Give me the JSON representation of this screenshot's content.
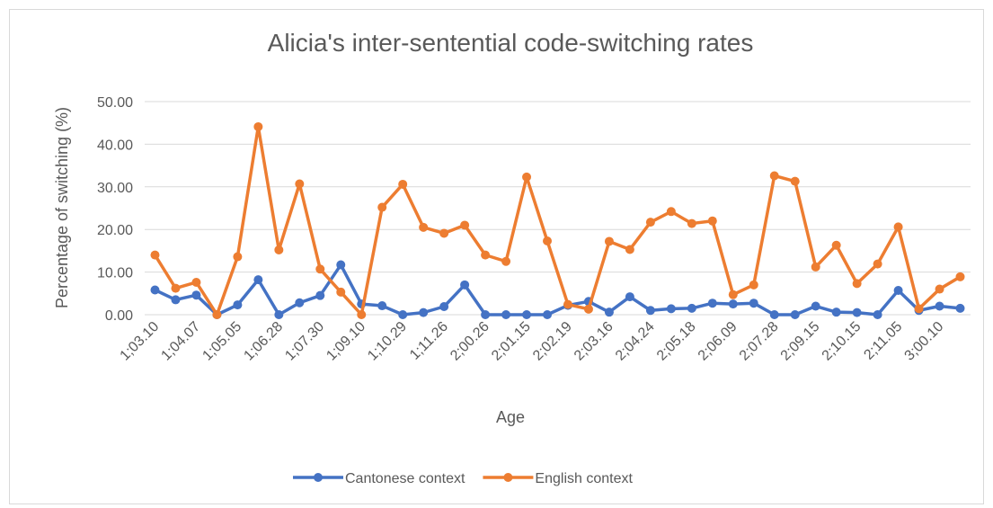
{
  "chart_data": {
    "type": "line",
    "title": "Alicia's inter-sentential code-switching  rates",
    "x_label": "Age",
    "y_label": "Percentage of switching (%)",
    "categories": [
      "1;03.10",
      null,
      "1;04.07",
      null,
      "1;05.05",
      null,
      "1;06.28",
      null,
      "1;07.30",
      null,
      "1;09.10",
      null,
      "1;10.29",
      null,
      "1;11.26",
      null,
      "2;00.26",
      null,
      "2;01.15",
      null,
      "2;02.19",
      null,
      "2;03.16",
      null,
      "2;04.24",
      null,
      "2;05.18",
      null,
      "2;06.09",
      null,
      "2;07.28",
      null,
      "2;09.15",
      null,
      "2;10.15",
      null,
      "2;11.05",
      null,
      "3;00.10",
      null
    ],
    "series": [
      {
        "name": "Cantonese context",
        "color": "#4472c4",
        "values": [
          5.8,
          3.5,
          4.6,
          0,
          2.3,
          8.2,
          0,
          2.8,
          4.5,
          11.7,
          2.5,
          2.1,
          0,
          0.5,
          1.9,
          7.0,
          0,
          0,
          0,
          0,
          2.2,
          3.1,
          0.6,
          4.2,
          1.0,
          1.4,
          1.5,
          2.7,
          2.5,
          2.7,
          0,
          0,
          2.0,
          0.6,
          0.5,
          0,
          5.7,
          1.0,
          2.0,
          1.5
        ]
      },
      {
        "name": "English context",
        "color": "#ed7d31",
        "values": [
          14.0,
          6.2,
          7.6,
          0,
          13.6,
          44.1,
          15.2,
          30.7,
          10.7,
          5.3,
          0,
          25.2,
          30.6,
          20.5,
          19.1,
          21.0,
          14.0,
          12.5,
          32.3,
          17.3,
          2.4,
          1.3,
          17.2,
          15.3,
          21.7,
          24.2,
          21.4,
          22.0,
          4.7,
          7.0,
          32.6,
          31.3,
          11.2,
          16.3,
          7.3,
          11.9,
          20.6,
          1.4,
          6.0,
          8.9
        ]
      }
    ],
    "ylim": [
      0,
      50
    ],
    "yticks": [
      {
        "value": 0,
        "label": "0.00"
      },
      {
        "value": 10,
        "label": "10.00"
      },
      {
        "value": 20,
        "label": "20.00"
      },
      {
        "value": 30,
        "label": "30.00"
      },
      {
        "value": 40,
        "label": "40.00"
      },
      {
        "value": 50,
        "label": "50.00"
      }
    ],
    "grid": true,
    "legend": "bottom"
  }
}
